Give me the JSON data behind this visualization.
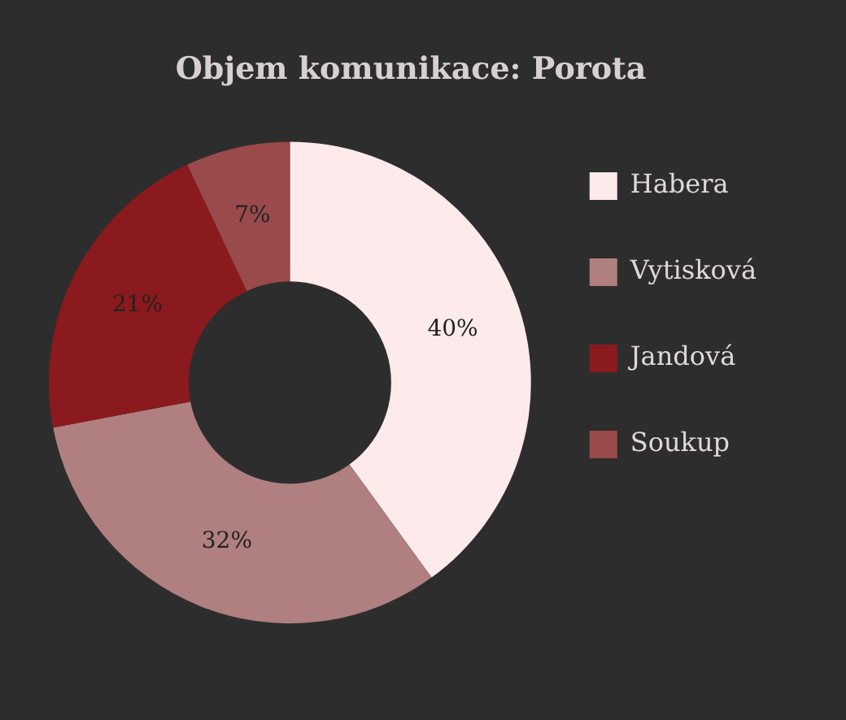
{
  "chart_data": {
    "type": "donut",
    "title": "Objem komunikace: Porota",
    "categories": [
      "Habera",
      "Vytisková",
      "Jandová",
      "Soukup"
    ],
    "values": [
      40,
      32,
      21,
      7
    ],
    "value_labels": [
      "40%",
      "32%",
      "21%",
      "7%"
    ],
    "colors": [
      "#fdeaea",
      "#b07f7f",
      "#8b1a1e",
      "#9a4a4a"
    ],
    "legend": "right"
  }
}
